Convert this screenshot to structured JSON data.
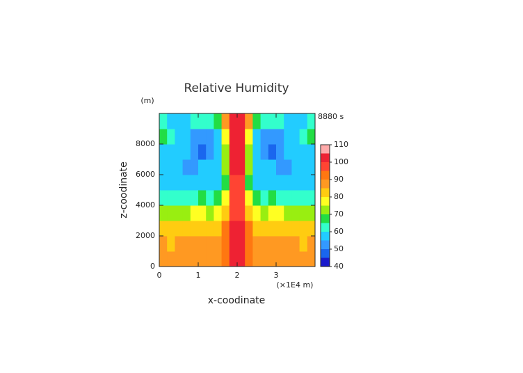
{
  "chart_data": {
    "type": "contour",
    "title": "Relative Humidity",
    "time_label": "8880 s",
    "x_label": "x-coodinate",
    "y_label": "z-coodinate",
    "x_unit": "(×1E4 m)",
    "y_unit": "(m)",
    "xlim": [
      0,
      4
    ],
    "xticks": [
      0,
      1,
      2,
      3
    ],
    "ylim": [
      0,
      10000
    ],
    "yticks": [
      0,
      2000,
      4000,
      6000,
      8000
    ],
    "x": [
      0.1,
      0.3,
      0.5,
      0.7,
      0.9,
      1.1,
      1.3,
      1.5,
      1.7,
      1.9,
      2.1,
      2.3,
      2.5,
      2.7,
      2.9,
      3.1,
      3.3,
      3.5,
      3.7,
      3.9
    ],
    "y": [
      500,
      1500,
      2500,
      3500,
      4500,
      5500,
      6500,
      7500,
      8500,
      9500
    ],
    "z": [
      [
        86,
        88,
        87,
        86,
        88,
        87,
        86,
        88,
        90,
        102,
        102,
        90,
        88,
        86,
        87,
        88,
        86,
        87,
        88,
        86
      ],
      [
        85,
        84,
        86,
        87,
        86,
        87,
        86,
        88,
        92,
        103,
        103,
        92,
        88,
        86,
        87,
        86,
        87,
        86,
        84,
        85
      ],
      [
        80,
        81,
        82,
        82,
        83,
        83,
        82,
        84,
        90,
        100,
        100,
        90,
        84,
        82,
        83,
        83,
        82,
        82,
        81,
        80
      ],
      [
        72,
        70,
        72,
        74,
        76,
        76,
        74,
        76,
        84,
        98,
        98,
        84,
        76,
        74,
        76,
        76,
        74,
        72,
        70,
        72
      ],
      [
        62,
        60,
        60,
        62,
        64,
        66,
        64,
        66,
        76,
        95,
        95,
        76,
        66,
        64,
        66,
        64,
        62,
        60,
        60,
        62
      ],
      [
        58,
        57,
        56,
        56,
        57,
        57,
        57,
        58,
        68,
        97,
        97,
        68,
        58,
        57,
        57,
        57,
        56,
        56,
        57,
        58
      ],
      [
        57,
        56,
        55,
        52,
        54,
        56,
        57,
        58,
        70,
        100,
        100,
        70,
        58,
        57,
        56,
        54,
        52,
        55,
        56,
        57
      ],
      [
        58,
        57,
        56,
        55,
        52,
        48,
        52,
        56,
        72,
        103,
        103,
        72,
        56,
        52,
        48,
        52,
        55,
        56,
        57,
        58
      ],
      [
        65,
        60,
        58,
        56,
        52,
        50,
        54,
        58,
        75,
        102,
        102,
        75,
        58,
        54,
        50,
        52,
        56,
        58,
        60,
        65
      ],
      [
        60,
        58,
        58,
        59,
        60,
        60,
        62,
        68,
        85,
        104,
        104,
        85,
        68,
        62,
        60,
        60,
        59,
        58,
        58,
        60
      ]
    ],
    "levels": [
      40,
      45,
      50,
      55,
      60,
      65,
      70,
      75,
      80,
      85,
      90,
      95,
      100,
      105,
      110
    ],
    "colors": [
      "#1a1acc",
      "#1a66ee",
      "#3399ff",
      "#22ccff",
      "#33ffcc",
      "#22dd44",
      "#99ee11",
      "#ffff22",
      "#ffcc11",
      "#ff9922",
      "#ff7711",
      "#ff4433",
      "#ee2233",
      "#ffaaaa"
    ],
    "colorbar_ticks": [
      40,
      50,
      60,
      70,
      80,
      90,
      100,
      110
    ]
  }
}
